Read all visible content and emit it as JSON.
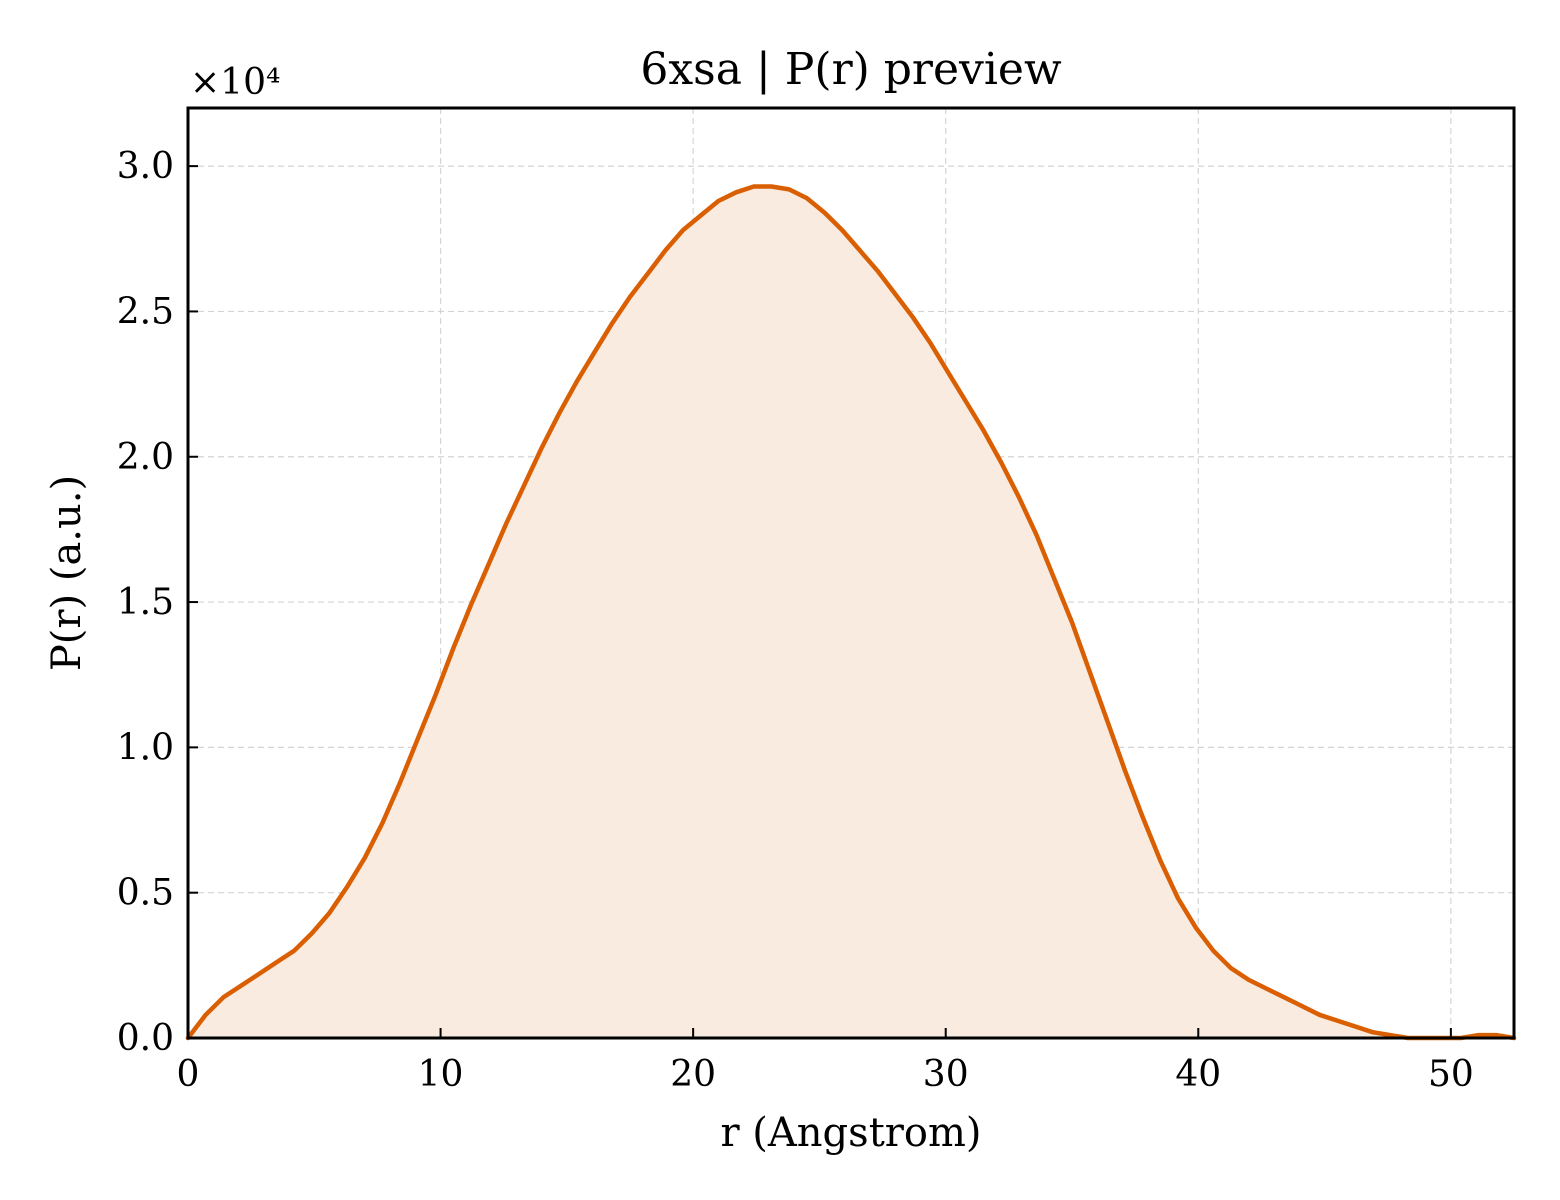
{
  "chart_data": {
    "type": "area",
    "title": "6xsa | P(r) preview",
    "xlabel": "r (Angstrom)",
    "ylabel": "P(r) (a.u.)",
    "y_scale_label": "×10⁴",
    "xlim": [
      0,
      52.5
    ],
    "ylim": [
      0,
      3.2
    ],
    "x_ticks": [
      0,
      10,
      20,
      30,
      40,
      50
    ],
    "x_tick_labels": [
      "0",
      "10",
      "20",
      "30",
      "40",
      "50"
    ],
    "y_ticks": [
      0,
      0.5,
      1.0,
      1.5,
      2.0,
      2.5,
      3.0
    ],
    "y_tick_labels": [
      "0.0",
      "0.5",
      "1.0",
      "1.5",
      "2.0",
      "2.5",
      "3.0"
    ],
    "grid": true,
    "line_color": "#d95f02",
    "fill_color": "#f9ebe0",
    "series": [
      {
        "x": [
          0,
          0.7,
          1.4,
          2.1,
          2.8,
          3.5,
          4.2,
          4.9,
          5.6,
          6.3,
          7.0,
          7.7,
          8.4,
          9.1,
          9.8,
          10.5,
          11.2,
          11.9,
          12.6,
          13.3,
          14.0,
          14.7,
          15.4,
          16.1,
          16.8,
          17.5,
          18.2,
          18.9,
          19.6,
          20.3,
          21.0,
          21.7,
          22.4,
          23.1,
          23.8,
          24.5,
          25.2,
          25.9,
          26.6,
          27.3,
          28.0,
          28.7,
          29.4,
          30.1,
          30.8,
          31.5,
          32.2,
          32.9,
          33.6,
          34.3,
          35.0,
          35.7,
          36.4,
          37.1,
          37.8,
          38.5,
          39.2,
          39.9,
          40.6,
          41.3,
          42.0,
          42.7,
          43.4,
          44.1,
          44.8,
          45.5,
          46.2,
          46.9,
          47.6,
          48.3,
          49.0,
          49.7,
          50.4,
          51.1,
          51.8,
          52.5
        ],
        "y": [
          0.0,
          0.08,
          0.14,
          0.18,
          0.22,
          0.26,
          0.3,
          0.36,
          0.43,
          0.52,
          0.62,
          0.74,
          0.88,
          1.03,
          1.18,
          1.34,
          1.49,
          1.63,
          1.77,
          1.9,
          2.03,
          2.15,
          2.26,
          2.36,
          2.46,
          2.55,
          2.63,
          2.71,
          2.78,
          2.83,
          2.88,
          2.91,
          2.93,
          2.93,
          2.92,
          2.89,
          2.84,
          2.78,
          2.71,
          2.64,
          2.56,
          2.48,
          2.39,
          2.29,
          2.19,
          2.09,
          1.98,
          1.86,
          1.73,
          1.58,
          1.43,
          1.26,
          1.09,
          0.92,
          0.76,
          0.61,
          0.48,
          0.38,
          0.3,
          0.24,
          0.2,
          0.17,
          0.14,
          0.11,
          0.08,
          0.06,
          0.04,
          0.02,
          0.01,
          0.0,
          0.0,
          0.0,
          0.0,
          0.01,
          0.01,
          0.0
        ]
      }
    ]
  }
}
